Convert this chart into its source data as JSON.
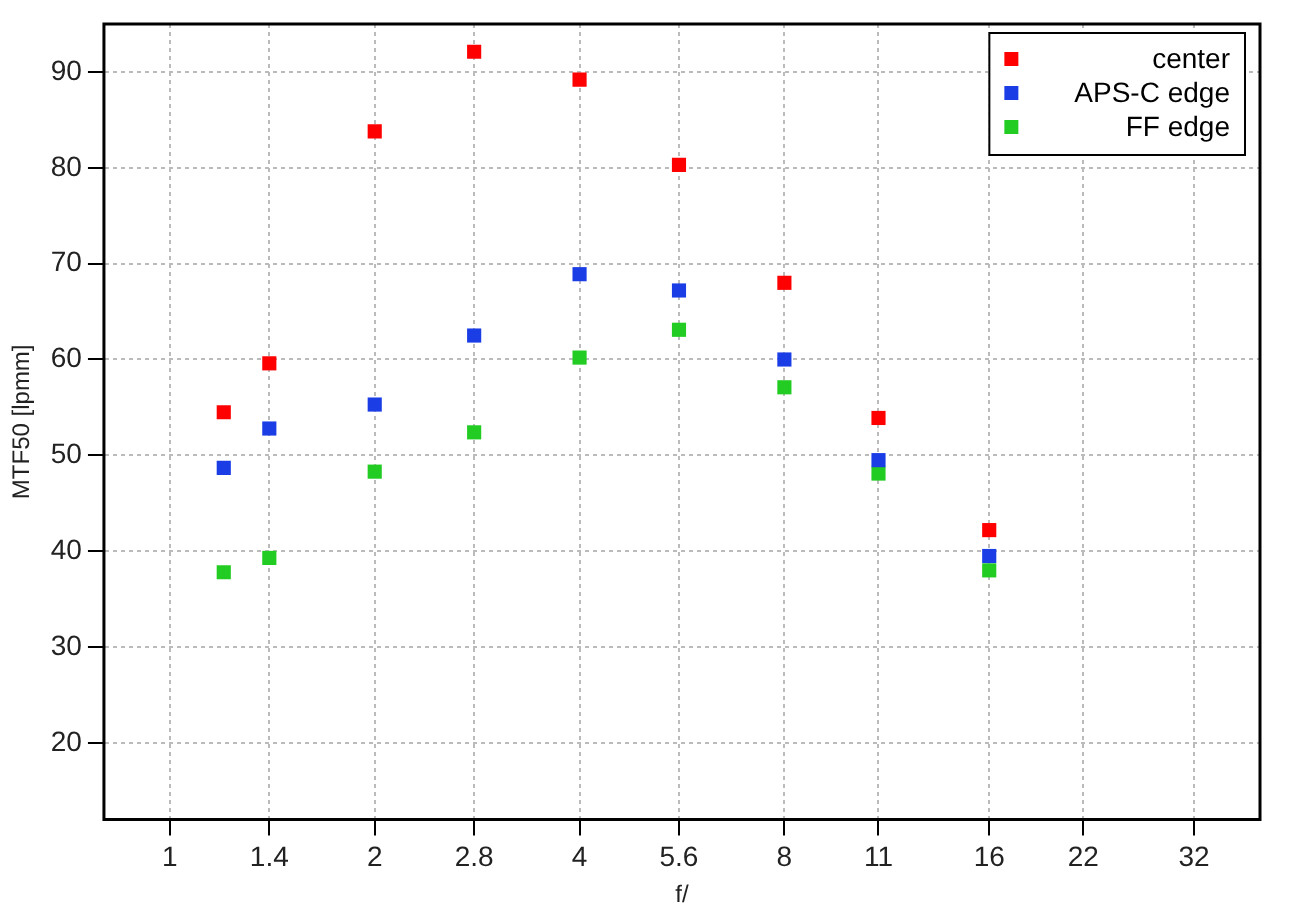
{
  "chart_data": {
    "type": "scatter",
    "xlabel": "f/",
    "ylabel": "MTF50 [lpmm]",
    "log": "x",
    "x": [
      1.2,
      1.4,
      2,
      2.8,
      4,
      5.6,
      8,
      11,
      16
    ],
    "series": [
      {
        "name": "center",
        "color": "#ff0000",
        "values": [
          54.5,
          59.6,
          83.8,
          92.1,
          89.2,
          80.3,
          68.0,
          53.9,
          42.2
        ]
      },
      {
        "name": "APS-C edge",
        "color": "#1a3de6",
        "values": [
          48.7,
          52.8,
          55.3,
          62.5,
          68.9,
          67.2,
          60.0,
          49.5,
          39.5
        ]
      },
      {
        "name": "FF edge",
        "color": "#22cc22",
        "values": [
          37.8,
          39.3,
          48.3,
          52.4,
          60.2,
          63.1,
          57.1,
          48.1,
          38.0
        ]
      }
    ],
    "xlim": [
      0.8,
      40
    ],
    "xticks": [
      1,
      1.4,
      2,
      2.8,
      4,
      5.6,
      8,
      11,
      16,
      22,
      32
    ],
    "ylim": [
      12,
      95
    ],
    "yticks": [
      20,
      30,
      40,
      50,
      60,
      70,
      80,
      90
    ],
    "grid": true,
    "legend": "top right",
    "marker": "square"
  }
}
